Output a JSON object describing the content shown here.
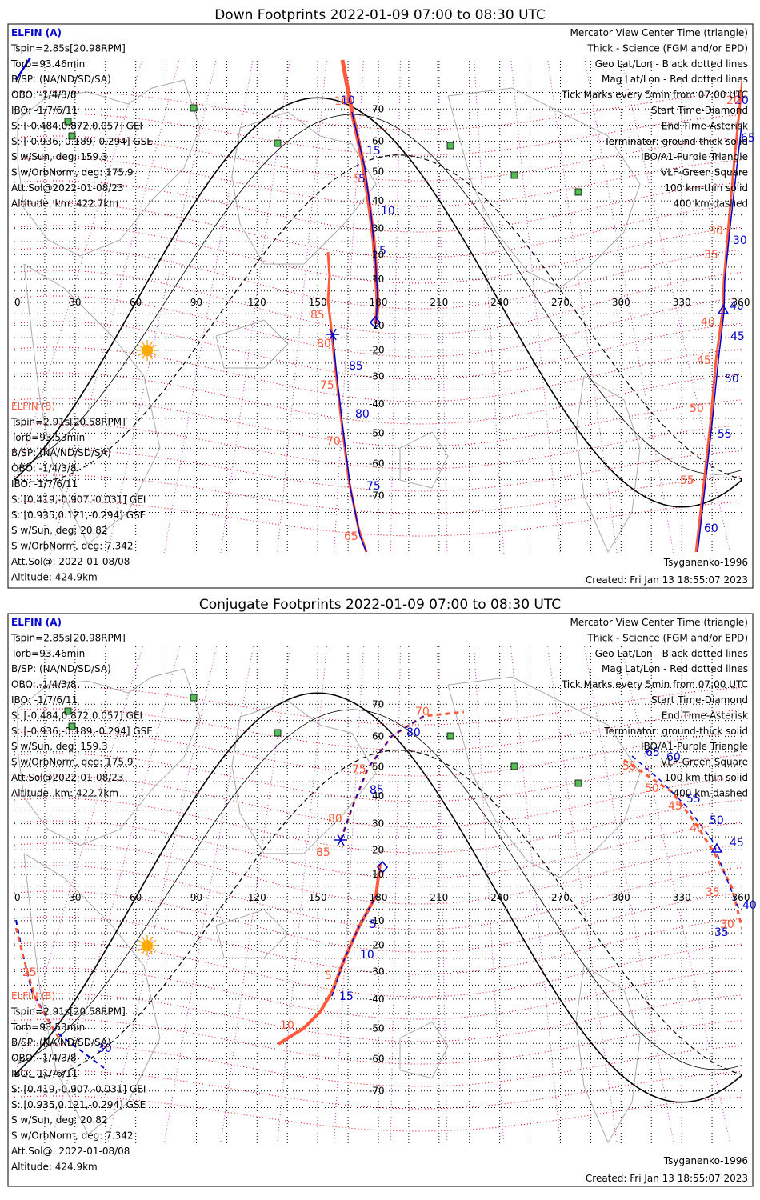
{
  "colors": {
    "elfin_a": "#0000cc",
    "elfin_b": "#ff5a3c",
    "mag": "#dd0000",
    "ibo": "#cc33cc",
    "vlf": "#44aa44",
    "grid": "#000000",
    "coast": "#aaaaaa"
  },
  "chart_data": [
    {
      "type": "map",
      "title": "Down Footprints 2022-01-09 07:00 to 08:30 UTC",
      "xlim": [
        0,
        360
      ],
      "x_ticks": [
        "0",
        "30",
        "60",
        "90",
        "120",
        "150",
        "180",
        "210",
        "240",
        "270",
        "300",
        "330",
        "360"
      ],
      "lat_ticks": [
        "70",
        "60",
        "50",
        "40",
        "30",
        "20",
        "10",
        "-10",
        "-20",
        "-30",
        "-40",
        "-50",
        "-60",
        "-70"
      ],
      "legend": [
        "Mercator View Center Time (triangle)",
        "Thick - Science (FGM and/or EPD)",
        "Geo Lat/Lon - Black dotted lines",
        "Mag Lat/Lon - Red dotted lines",
        "Tick Marks every 5min from 07:00 UTC",
        "Start Time-Diamond",
        "End Time-Asterisk",
        "Terminator: ground-thick solid",
        "IBO/A1-Purple Triangle",
        "VLF-Green Square",
        "100 km-thin solid",
        "400 km-dashed"
      ],
      "elfin_a": [
        "ELFIN (A)",
        "Tspin=2.85s[20.98RPM]",
        "Torb=93.46min",
        "B/SP: (NA/ND/SD/SA)",
        "OBO: -1/4/3/8",
        "IBO: -1/7/6/11",
        "S: [-0.484,0.872,0.057] GEI",
        "S: [-0.936,-0.189,-0.294] GSE",
        "S w/Sun, deg: 159.3",
        "S w/OrbNorm, deg: 175.9",
        "Att.Sol@2022-01-08/23",
        "Altitude, km: 422.7km"
      ],
      "elfin_b": [
        "ELFIN (B)",
        "Tspin=2.91s[20.58RPM]",
        "Torb=93.53min",
        "B/SP: (NA/ND/SD/SA)",
        "OBO: -1/4/3/8",
        "IBO: -1/7/6/11",
        "S: [0.419,-0.907,-0.031] GEI",
        "S: [0.935,0.121,-0.294] GSE",
        "S w/Sun, deg: 20.82",
        "S w/OrbNorm, deg: 7.342",
        "Att.Sol@: 2022-01-08/08",
        "Altitude: 424.9km"
      ],
      "model": "Tsyganenko-1996",
      "created": "Created: Fri Jan 13 18:55:07 2023",
      "track_a_labels": [
        "10",
        "15",
        "5",
        "10",
        "5",
        "85",
        "80",
        "75",
        "20",
        "30",
        "40",
        "45",
        "50",
        "55",
        "60",
        "65"
      ],
      "track_b_labels": [
        "10",
        "5",
        "85",
        "80",
        "75",
        "70",
        "65",
        "20",
        "30",
        "35",
        "40",
        "45",
        "50",
        "55"
      ]
    },
    {
      "type": "map",
      "title": "Conjugate Footprints 2022-01-09 07:00 to 08:30 UTC",
      "xlim": [
        0,
        360
      ],
      "x_ticks": [
        "0",
        "30",
        "60",
        "90",
        "120",
        "150",
        "180",
        "210",
        "240",
        "270",
        "300",
        "330",
        "360"
      ],
      "lat_ticks": [
        "70",
        "60",
        "50",
        "40",
        "30",
        "20",
        "10",
        "-10",
        "-20",
        "-30",
        "-40",
        "-50",
        "-60",
        "-70"
      ],
      "legend": [
        "Mercator View Center Time (triangle)",
        "Thick - Science (FGM and/or EPD)",
        "Geo Lat/Lon - Black dotted lines",
        "Mag Lat/Lon - Red dotted lines",
        "Tick Marks every 5min from 07:00 UTC",
        "Start Time-Diamond",
        "End Time-Asterisk",
        "Terminator: ground-thick solid",
        "IBO/A1-Purple Triangle",
        "VLF-Green Square",
        "100 km-thin solid",
        "400 km-dashed"
      ],
      "elfin_a": [
        "ELFIN (A)",
        "Tspin=2.85s[20.98RPM]",
        "Torb=93.46min",
        "B/SP: (NA/ND/SD/SA)",
        "OBO: -1/4/3/8",
        "IBO: -1/7/6/11",
        "S: [-0.484,0.872,0.057] GEI",
        "S: [-0.936,-0.189,-0.294] GSE",
        "S w/Sun, deg: 159.3",
        "S w/OrbNorm, deg: 175.9",
        "Att.Sol@2022-01-08/23",
        "Altitude, km: 422.7km"
      ],
      "elfin_b": [
        "ELFIN (B)",
        "Tspin=2.91s[20.58RPM]",
        "Torb=93.53min",
        "B/SP: (NA/ND/SD/SA)",
        "OBO: -1/4/3/8",
        "IBO: -1/7/6/11",
        "S: [0.419,-0.907,-0.031] GEI",
        "S: [0.935,0.121,-0.294] GSE",
        "S w/Sun, deg: 20.82",
        "S w/OrbNorm, deg: 7.342",
        "Att.Sol@: 2022-01-08/08",
        "Altitude: 424.9km"
      ],
      "model": "Tsyganenko-1996",
      "created": "Created: Fri Jan 13 18:55:07 2023",
      "track_a_labels": [
        "65",
        "60",
        "55",
        "50",
        "45",
        "40",
        "35",
        "30",
        "80",
        "85",
        "5",
        "10",
        "15"
      ],
      "track_b_labels": [
        "70",
        "75",
        "80",
        "85",
        "5",
        "10",
        "55",
        "50",
        "45",
        "40",
        "35",
        "30",
        "25"
      ]
    }
  ]
}
